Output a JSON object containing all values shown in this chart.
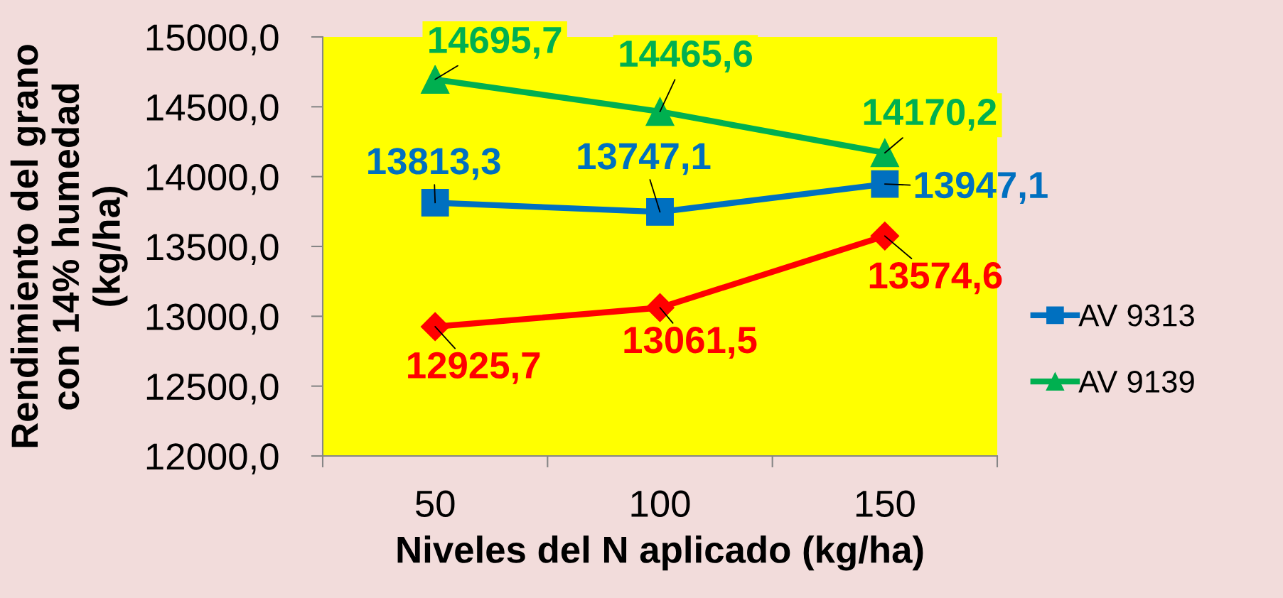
{
  "chart_data": {
    "type": "line",
    "xlabel": "Niveles del N aplicado (kg/ha)",
    "ylabel": "Rendimiento del grano\ncon 14% humedad\n(kg/ha)",
    "categories": [
      "50",
      "100",
      "150"
    ],
    "ylim": [
      12000,
      15000
    ],
    "yticks": [
      {
        "value": 12000,
        "label": "12000,0"
      },
      {
        "value": 12500,
        "label": "12500,0"
      },
      {
        "value": 13000,
        "label": "13000,0"
      },
      {
        "value": 13500,
        "label": "13500,0"
      },
      {
        "value": 14000,
        "label": "14000,0"
      },
      {
        "value": 14500,
        "label": "14500,0"
      },
      {
        "value": 15000,
        "label": "15000,0"
      }
    ],
    "series": [
      {
        "color": "#ff0000",
        "marker": "diamond",
        "values": [
          12925.7,
          13061.5,
          13574.6
        ],
        "value_labels": [
          "12925,7",
          "13061,5",
          "13574,6"
        ]
      },
      {
        "name": "AV 9313",
        "color": "#0070c0",
        "marker": "square",
        "values": [
          13813.3,
          13747.1,
          13947.1
        ],
        "value_labels": [
          "13813,3",
          "13747,1",
          "13947,1"
        ]
      },
      {
        "name": "AV 9139",
        "color": "#00b050",
        "marker": "triangle",
        "values": [
          14695.7,
          14465.6,
          14170.2
        ],
        "value_labels": [
          "14695,7",
          "14465,6",
          "14170,2"
        ]
      }
    ],
    "legend": "right",
    "grid": false,
    "line_style": "solid"
  }
}
